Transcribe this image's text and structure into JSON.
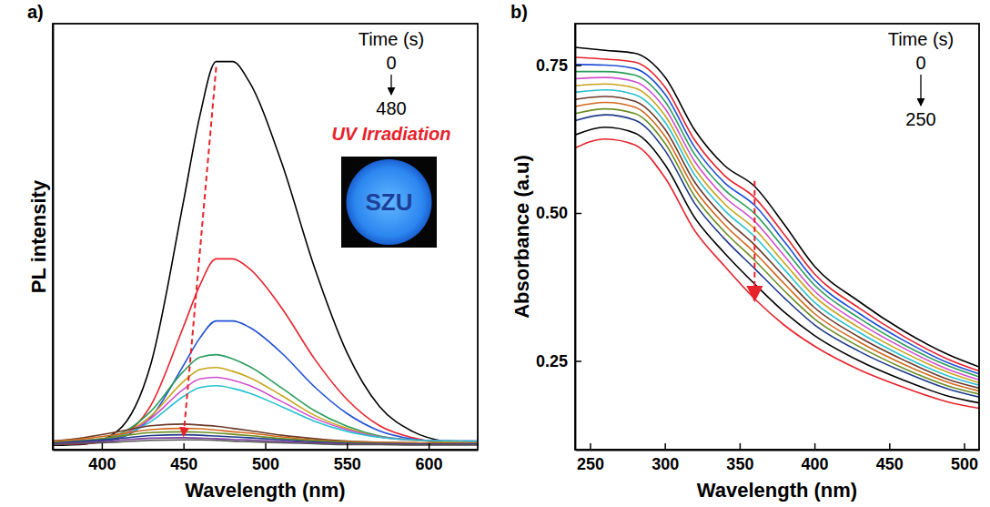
{
  "chart_data": [
    {
      "type": "line",
      "panel_label": "a)",
      "x_label": "Wavelength (nm)",
      "y_label": "PL intensity",
      "xlim": [
        370,
        630
      ],
      "xticks": [
        400,
        450,
        500,
        550,
        600
      ],
      "ylim": [
        0,
        100
      ],
      "tick_labels": "x",
      "legend_title": "Time (s)",
      "time_start": 0,
      "time_end": 480,
      "annotation": "UV Irradiation",
      "inset_text": "SZU",
      "x": [
        370,
        390,
        410,
        430,
        450,
        460,
        470,
        480,
        490,
        510,
        530,
        550,
        570,
        590,
        610,
        630
      ],
      "series": [
        {
          "color": "#000000",
          "values": [
            1.0,
            1.3,
            4.5,
            20.1,
            58.3,
            78.4,
            91.1,
            91.1,
            86.5,
            67.4,
            42.9,
            22.8,
            10.1,
            4.3,
            1.9,
            1.2
          ]
        },
        {
          "color": "#e8222b",
          "values": [
            1.2,
            1.4,
            2.9,
            10.4,
            28.9,
            38.6,
            44.8,
            44.8,
            42.6,
            33.3,
            21.4,
            11.8,
            5.6,
            2.8,
            1.6,
            1.3
          ]
        },
        {
          "color": "#1f4fd6",
          "values": [
            1.5,
            1.6,
            2.6,
            7.6,
            19.8,
            26.2,
            30.2,
            30.2,
            28.8,
            22.7,
            14.8,
            8.5,
            4.4,
            2.5,
            1.8,
            1.6
          ]
        },
        {
          "color": "#2a9d5a",
          "values": [
            1.8,
            2.0,
            3.5,
            9.0,
            18.4,
            21.7,
            22.3,
            21.3,
            19.6,
            14.5,
            9.2,
            5.5,
            3.2,
            2.3,
            1.9,
            1.8
          ]
        },
        {
          "color": "#c8a41a",
          "values": [
            1.8,
            2.0,
            3.2,
            7.9,
            16.0,
            18.8,
            19.3,
            18.4,
            17.0,
            12.7,
            8.1,
            5.0,
            3.0,
            2.2,
            1.9,
            1.8
          ]
        },
        {
          "color": "#d04fcf",
          "values": [
            2.0,
            2.2,
            3.2,
            7.3,
            14.2,
            16.6,
            17.0,
            16.3,
            15.1,
            11.3,
            7.4,
            4.7,
            3.0,
            2.3,
            2.1,
            2.0
          ]
        },
        {
          "color": "#27c0d0",
          "values": [
            2.0,
            2.1,
            3.1,
            6.6,
            12.5,
            14.6,
            15.0,
            14.4,
            13.3,
            10.1,
            6.7,
            4.3,
            2.9,
            2.3,
            2.1,
            2.0
          ]
        },
        {
          "color": "#6b3a2a",
          "values": [
            2.0,
            2.9,
            4.2,
            5.6,
            6.0,
            5.8,
            5.5,
            5.0,
            4.5,
            3.4,
            2.6,
            2.0,
            1.7,
            1.6,
            1.5,
            1.5
          ]
        },
        {
          "color": "#d2691e",
          "values": [
            1.9,
            2.6,
            3.6,
            4.7,
            5.0,
            4.9,
            4.6,
            4.2,
            3.9,
            3.0,
            2.3,
            1.9,
            1.7,
            1.6,
            1.5,
            1.5
          ]
        },
        {
          "color": "#6b8e23",
          "values": [
            1.7,
            2.2,
            3.1,
            4.0,
            4.2,
            4.1,
            3.9,
            3.6,
            3.3,
            2.6,
            2.1,
            1.7,
            1.5,
            1.4,
            1.4,
            1.4
          ]
        },
        {
          "color": "#1e3a8a",
          "values": [
            1.5,
            2.0,
            2.6,
            3.3,
            3.5,
            3.4,
            3.2,
            3.0,
            2.8,
            2.3,
            1.8,
            1.5,
            1.4,
            1.3,
            1.3,
            1.3
          ]
        },
        {
          "color": "#7b3fa0",
          "values": [
            1.4,
            1.7,
            2.2,
            2.7,
            2.8,
            2.7,
            2.6,
            2.4,
            2.3,
            1.9,
            1.6,
            1.4,
            1.3,
            1.2,
            1.2,
            1.2
          ]
        },
        {
          "color": "#555555",
          "values": [
            1.2,
            1.5,
            1.8,
            2.2,
            2.3,
            2.3,
            2.2,
            2.0,
            1.9,
            1.6,
            1.4,
            1.2,
            1.2,
            1.1,
            1.1,
            1.1
          ]
        }
      ]
    },
    {
      "type": "line",
      "panel_label": "b)",
      "x_label": "Wavelength (nm)",
      "y_label": "Absorbance (a.u)",
      "xlim": [
        240,
        510
      ],
      "xticks": [
        250,
        300,
        350,
        400,
        450,
        500
      ],
      "ylim": [
        0.1,
        0.82
      ],
      "yticks": [
        0.25,
        {
          "value": 0.5,
          "label": "0.50"
        },
        0.75
      ],
      "legend_title": "Time (s)",
      "time_start": 0,
      "time_end": 250,
      "x": [
        240,
        260,
        280,
        300,
        320,
        340,
        360,
        380,
        400,
        430,
        460,
        490,
        510
      ],
      "series": [
        {
          "color": "#000000",
          "values": [
            0.78,
            0.775,
            0.77,
            0.73,
            0.64,
            0.58,
            0.545,
            0.48,
            0.41,
            0.35,
            0.3,
            0.26,
            0.24
          ]
        },
        {
          "color": "#e8222b",
          "values": [
            0.763,
            0.76,
            0.755,
            0.713,
            0.623,
            0.563,
            0.526,
            0.463,
            0.397,
            0.339,
            0.291,
            0.252,
            0.233
          ]
        },
        {
          "color": "#1f4fd6",
          "values": [
            0.751,
            0.75,
            0.744,
            0.701,
            0.611,
            0.551,
            0.513,
            0.451,
            0.387,
            0.33,
            0.284,
            0.246,
            0.228
          ]
        },
        {
          "color": "#2a9d5a",
          "values": [
            0.739,
            0.739,
            0.733,
            0.689,
            0.599,
            0.539,
            0.499,
            0.439,
            0.378,
            0.322,
            0.277,
            0.241,
            0.223
          ]
        },
        {
          "color": "#d04fcf",
          "values": [
            0.727,
            0.729,
            0.722,
            0.677,
            0.587,
            0.527,
            0.486,
            0.427,
            0.368,
            0.314,
            0.271,
            0.235,
            0.218
          ]
        },
        {
          "color": "#c8a41a",
          "values": [
            0.715,
            0.718,
            0.711,
            0.665,
            0.575,
            0.515,
            0.473,
            0.415,
            0.359,
            0.306,
            0.264,
            0.23,
            0.213
          ]
        },
        {
          "color": "#27c0d0",
          "values": [
            0.704,
            0.708,
            0.7,
            0.654,
            0.564,
            0.504,
            0.46,
            0.404,
            0.349,
            0.298,
            0.257,
            0.224,
            0.209
          ]
        },
        {
          "color": "#6b3a2a",
          "values": [
            0.692,
            0.697,
            0.689,
            0.642,
            0.552,
            0.492,
            0.446,
            0.392,
            0.34,
            0.29,
            0.251,
            0.218,
            0.204
          ]
        },
        {
          "color": "#d2691e",
          "values": [
            0.68,
            0.687,
            0.679,
            0.63,
            0.54,
            0.48,
            0.433,
            0.38,
            0.33,
            0.282,
            0.244,
            0.213,
            0.199
          ]
        },
        {
          "color": "#6b8e23",
          "values": [
            0.668,
            0.676,
            0.668,
            0.618,
            0.528,
            0.468,
            0.42,
            0.368,
            0.321,
            0.274,
            0.237,
            0.207,
            0.194
          ]
        },
        {
          "color": "#1e3a8a",
          "values": [
            0.656,
            0.666,
            0.657,
            0.606,
            0.516,
            0.456,
            0.406,
            0.356,
            0.311,
            0.266,
            0.231,
            0.202,
            0.189
          ]
        },
        {
          "color": "#000000",
          "values": [
            0.632,
            0.645,
            0.635,
            0.582,
            0.492,
            0.432,
            0.38,
            0.332,
            0.293,
            0.25,
            0.217,
            0.19,
            0.179
          ]
        },
        {
          "color": "#e8222b",
          "values": [
            0.61,
            0.625,
            0.615,
            0.56,
            0.47,
            0.41,
            0.355,
            0.31,
            0.275,
            0.235,
            0.205,
            0.18,
            0.17
          ]
        }
      ]
    }
  ]
}
